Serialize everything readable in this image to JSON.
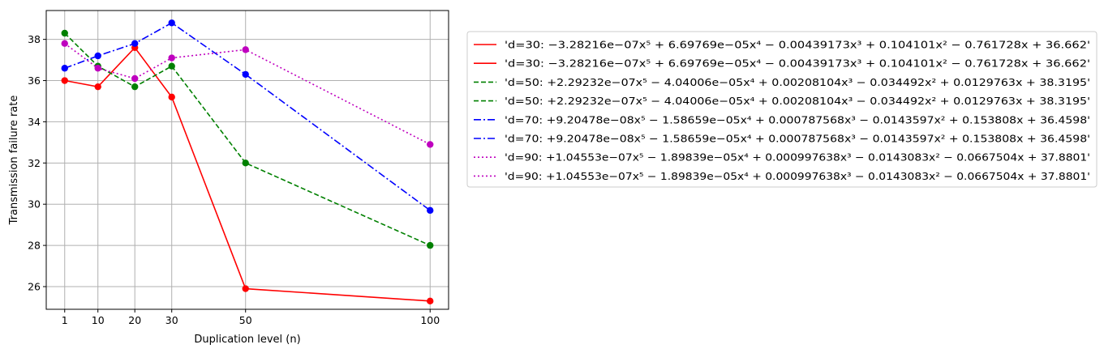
{
  "chart_data": {
    "type": "line",
    "title": "",
    "xlabel": "Duplication level (n)",
    "ylabel": "Transmission failure rate",
    "x": [
      1,
      10,
      20,
      30,
      50,
      100
    ],
    "x_ticks": [
      "1",
      "10",
      "20",
      "30",
      "50",
      "100"
    ],
    "y_ticks": [
      "26",
      "28",
      "30",
      "32",
      "34",
      "36",
      "38"
    ],
    "xlim": [
      -4,
      105
    ],
    "ylim": [
      24.9,
      39.4
    ],
    "grid": true,
    "legend_placement": "outside-upper-right",
    "series": [
      {
        "key": "d30",
        "color": "#ff0000",
        "dash": "solid",
        "values": [
          36.0,
          35.7,
          37.6,
          35.2,
          25.9,
          25.3
        ]
      },
      {
        "key": "d50",
        "color": "#008000",
        "dash": "dashed",
        "values": [
          38.3,
          36.7,
          35.7,
          36.7,
          32.0,
          28.0
        ]
      },
      {
        "key": "d70",
        "color": "#0000ff",
        "dash": "dashdot",
        "values": [
          36.6,
          37.2,
          37.8,
          38.8,
          36.3,
          29.7
        ]
      },
      {
        "key": "d90",
        "color": "#bf00bf",
        "dash": "dotted",
        "values": [
          37.8,
          36.6,
          36.1,
          37.1,
          37.5,
          32.9
        ]
      }
    ],
    "legend": [
      {
        "label": "'d=30: −3.28216e−07x⁵ + 6.69769e−05x⁴ − 0.00439173x³ + 0.104101x² − 0.761728x + 36.662'",
        "color": "#ff0000",
        "dash": "solid"
      },
      {
        "label": "'d=30: −3.28216e−07x⁵ + 6.69769e−05x⁴ − 0.00439173x³ + 0.104101x² − 0.761728x + 36.662'",
        "color": "#ff0000",
        "dash": "solid"
      },
      {
        "label": "'d=50: +2.29232e−07x⁵ − 4.04006e−05x⁴ + 0.00208104x³ − 0.034492x² + 0.0129763x + 38.3195'",
        "color": "#008000",
        "dash": "dashed"
      },
      {
        "label": "'d=50: +2.29232e−07x⁵ − 4.04006e−05x⁴ + 0.00208104x³ − 0.034492x² + 0.0129763x + 38.3195'",
        "color": "#008000",
        "dash": "dashed"
      },
      {
        "label": "'d=70: +9.20478e−08x⁵ − 1.58659e−05x⁴ + 0.000787568x³ − 0.0143597x² + 0.153808x + 36.4598'",
        "color": "#0000ff",
        "dash": "dashdot"
      },
      {
        "label": "'d=70: +9.20478e−08x⁵ − 1.58659e−05x⁴ + 0.000787568x³ − 0.0143597x² + 0.153808x + 36.4598'",
        "color": "#0000ff",
        "dash": "dashdot"
      },
      {
        "label": "'d=90: +1.04553e−07x⁵ − 1.89839e−05x⁴ + 0.000997638x³ − 0.0143083x² − 0.0667504x + 37.8801'",
        "color": "#bf00bf",
        "dash": "dotted"
      },
      {
        "label": "'d=90: +1.04553e−07x⁵ − 1.89839e−05x⁴ + 0.000997638x³ − 0.0143083x² − 0.0667504x + 37.8801'",
        "color": "#bf00bf",
        "dash": "dotted"
      }
    ]
  }
}
